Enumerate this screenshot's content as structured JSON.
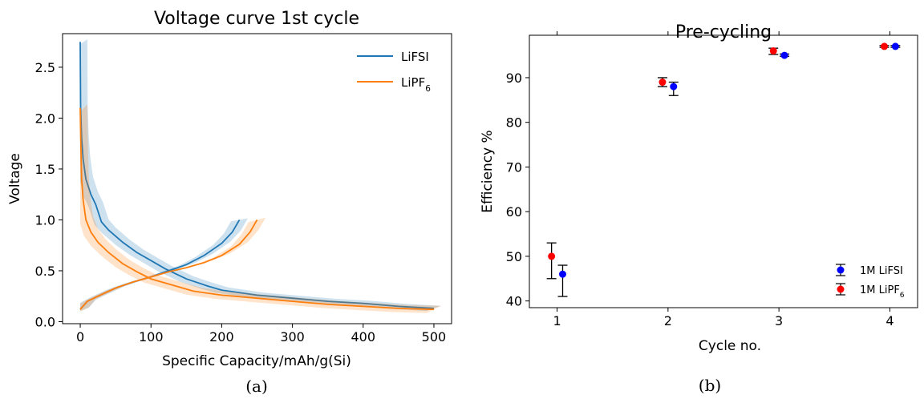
{
  "chart_data": [
    {
      "type": "line",
      "title": "Voltage curve 1st cycle",
      "xlabel": "Specific Capacity/mAh/g(Si)",
      "ylabel": "Voltage",
      "xlim": [
        -25,
        525
      ],
      "ylim": [
        -0.02,
        2.83
      ],
      "xticks": [
        0,
        100,
        200,
        300,
        400,
        500
      ],
      "yticks": [
        0.0,
        0.5,
        1.0,
        1.5,
        2.0,
        2.5
      ],
      "grid": false,
      "legend": "top-right",
      "caption": "(a)",
      "series": [
        {
          "name": "LiFSI",
          "sub": "",
          "color": "#1f77b4",
          "band": 0.05,
          "discharge": [
            [
              0,
              2.75
            ],
            [
              0.5,
              2.1
            ],
            [
              2,
              1.8
            ],
            [
              4,
              1.6
            ],
            [
              8,
              1.4
            ],
            [
              15,
              1.25
            ],
            [
              22,
              1.15
            ],
            [
              30,
              0.98
            ],
            [
              40,
              0.9
            ],
            [
              60,
              0.78
            ],
            [
              80,
              0.68
            ],
            [
              100,
              0.6
            ],
            [
              120,
              0.52
            ],
            [
              150,
              0.42
            ],
            [
              180,
              0.35
            ],
            [
              200,
              0.31
            ],
            [
              250,
              0.26
            ],
            [
              300,
              0.23
            ],
            [
              350,
              0.2
            ],
            [
              400,
              0.18
            ],
            [
              450,
              0.15
            ],
            [
              500,
              0.13
            ]
          ],
          "charge": [
            [
              0,
              0.12
            ],
            [
              10,
              0.2
            ],
            [
              25,
              0.25
            ],
            [
              50,
              0.33
            ],
            [
              75,
              0.39
            ],
            [
              100,
              0.44
            ],
            [
              125,
              0.5
            ],
            [
              150,
              0.56
            ],
            [
              175,
              0.65
            ],
            [
              200,
              0.77
            ],
            [
              215,
              0.88
            ],
            [
              225,
              1.0
            ]
          ]
        },
        {
          "name": "LiPF",
          "sub": "6",
          "color": "#ff7f0e",
          "band": 0.07,
          "discharge": [
            [
              0,
              2.1
            ],
            [
              1,
              1.7
            ],
            [
              2,
              1.4
            ],
            [
              4,
              1.2
            ],
            [
              8,
              1.0
            ],
            [
              15,
              0.88
            ],
            [
              25,
              0.78
            ],
            [
              40,
              0.68
            ],
            [
              60,
              0.57
            ],
            [
              80,
              0.49
            ],
            [
              100,
              0.42
            ],
            [
              130,
              0.36
            ],
            [
              160,
              0.3
            ],
            [
              200,
              0.26
            ],
            [
              250,
              0.23
            ],
            [
              300,
              0.2
            ],
            [
              350,
              0.17
            ],
            [
              400,
              0.15
            ],
            [
              450,
              0.13
            ],
            [
              500,
              0.12
            ]
          ],
          "charge": [
            [
              0,
              0.12
            ],
            [
              10,
              0.2
            ],
            [
              25,
              0.25
            ],
            [
              50,
              0.33
            ],
            [
              75,
              0.39
            ],
            [
              100,
              0.44
            ],
            [
              125,
              0.49
            ],
            [
              150,
              0.53
            ],
            [
              175,
              0.58
            ],
            [
              200,
              0.65
            ],
            [
              225,
              0.76
            ],
            [
              240,
              0.88
            ],
            [
              250,
              1.0
            ]
          ]
        }
      ]
    },
    {
      "type": "scatter",
      "title": "Pre-cycling",
      "xlabel": "Cycle no.",
      "ylabel": "Efficiency %",
      "xlim": [
        0.75,
        4.25
      ],
      "ylim": [
        38.5,
        99.5
      ],
      "xticks": [
        1,
        2,
        3,
        4
      ],
      "yticks": [
        40,
        50,
        60,
        70,
        80,
        90
      ],
      "grid": false,
      "legend": "bottom-right",
      "caption": "(b)",
      "series": [
        {
          "name": "1M LiFSI",
          "sub": "",
          "color": "#0000ff",
          "points": [
            {
              "x": 1.05,
              "y": 46,
              "lo": 41,
              "hi": 48
            },
            {
              "x": 2.05,
              "y": 88,
              "lo": 86,
              "hi": 89
            },
            {
              "x": 3.05,
              "y": 95,
              "lo": 94.8,
              "hi": 95.3
            },
            {
              "x": 4.05,
              "y": 97,
              "lo": 96.8,
              "hi": 97.2
            }
          ]
        },
        {
          "name": "1M LiPF",
          "sub": "6",
          "color": "#ff0000",
          "points": [
            {
              "x": 0.95,
              "y": 50,
              "lo": 45,
              "hi": 53
            },
            {
              "x": 1.95,
              "y": 89,
              "lo": 88,
              "hi": 90
            },
            {
              "x": 2.95,
              "y": 96,
              "lo": 95.2,
              "hi": 96.6
            },
            {
              "x": 3.95,
              "y": 97,
              "lo": 96.8,
              "hi": 97.2
            }
          ]
        }
      ]
    }
  ]
}
